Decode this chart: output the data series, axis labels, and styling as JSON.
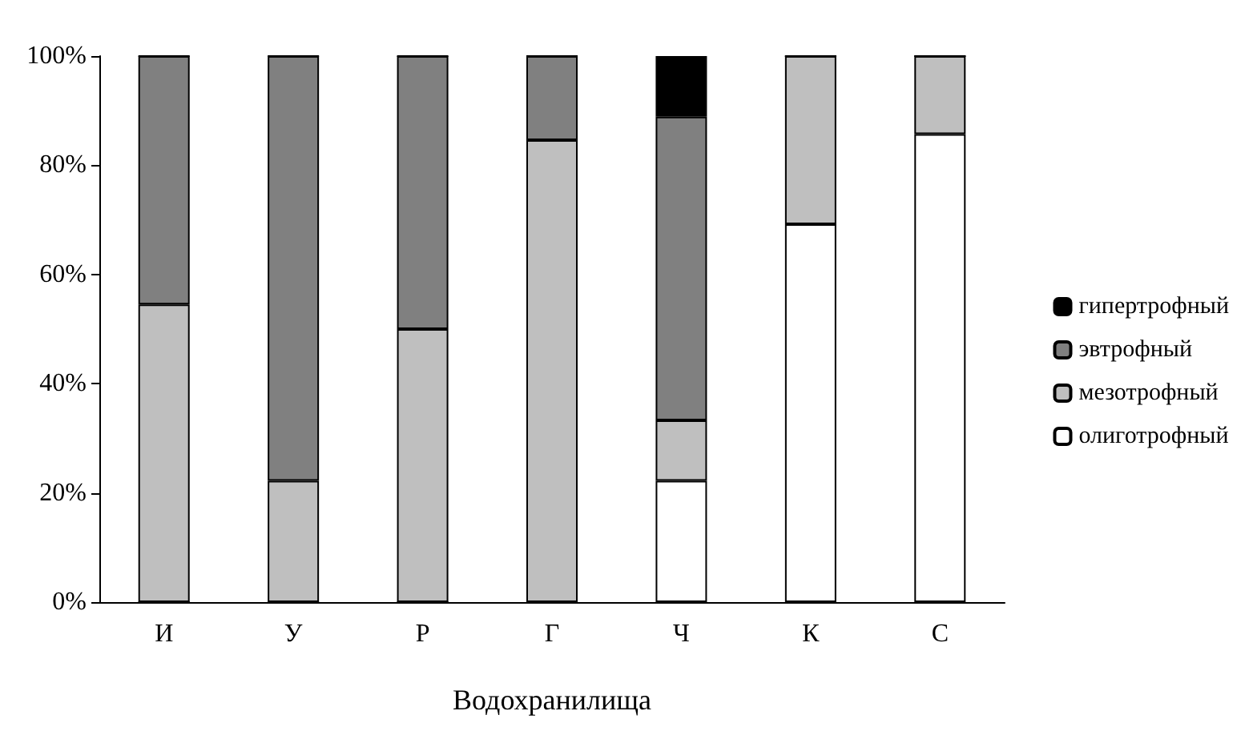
{
  "chart_data": {
    "type": "bar",
    "stacked": true,
    "xlabel": "Водохранилища",
    "categories": [
      "И",
      "У",
      "Р",
      "Г",
      "Ч",
      "К",
      "С"
    ],
    "series": [
      {
        "name": "олиготрофный",
        "color": "#ffffff",
        "values": [
          0,
          0,
          0,
          0,
          22.2,
          69.2,
          85.7
        ]
      },
      {
        "name": "мезотрофный",
        "color": "#bfbfbf",
        "values": [
          54.5,
          22.2,
          50,
          84.6,
          11.1,
          30.8,
          14.3
        ]
      },
      {
        "name": "эвтрофный",
        "color": "#808080",
        "values": [
          45.5,
          77.8,
          50,
          15.4,
          55.6,
          0,
          0
        ]
      },
      {
        "name": "гипертрофный",
        "color": "#000000",
        "values": [
          0,
          0,
          0,
          0,
          11.1,
          0,
          0
        ]
      }
    ],
    "ylim": [
      0,
      100
    ],
    "yticks": [
      {
        "value": 0,
        "label": "0%"
      },
      {
        "value": 20,
        "label": "20%"
      },
      {
        "value": 40,
        "label": "40%"
      },
      {
        "value": 60,
        "label": "60%"
      },
      {
        "value": 80,
        "label": "80%"
      },
      {
        "value": 100,
        "label": "100%"
      }
    ],
    "grid": false,
    "legend": "right"
  }
}
